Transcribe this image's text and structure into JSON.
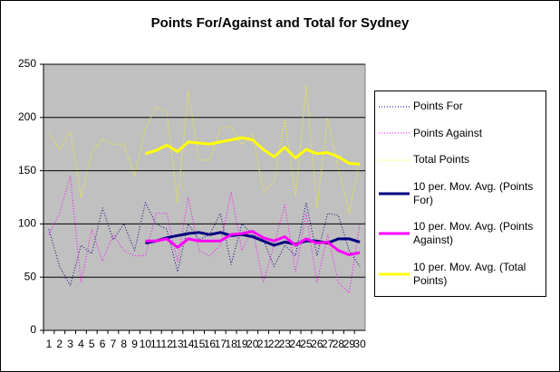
{
  "chart_data": {
    "type": "line",
    "title": "Points For/Against and Total for Sydney",
    "categories": [
      "1",
      "2",
      "3",
      "4",
      "5",
      "6",
      "7",
      "8",
      "9",
      "10",
      "11",
      "12",
      "13",
      "14",
      "15",
      "16",
      "17",
      "18",
      "19",
      "20",
      "21",
      "22",
      "23",
      "24",
      "25",
      "26",
      "27",
      "28",
      "29",
      "30"
    ],
    "ylim": [
      0,
      250
    ],
    "yticks": [
      0,
      50,
      100,
      150,
      200,
      250
    ],
    "grid": true,
    "plot_background": "#c0c0c0",
    "series": [
      {
        "name": "Points For",
        "color": "#000080",
        "style": "dotted",
        "values": [
          95,
          60,
          42,
          80,
          72,
          115,
          85,
          100,
          75,
          120,
          100,
          95,
          55,
          100,
          85,
          90,
          110,
          62,
          100,
          90,
          85,
          60,
          80,
          70,
          120,
          70,
          110,
          108,
          75,
          60
        ]
      },
      {
        "name": "Points Against",
        "color": "#ff00ff",
        "style": "dotted",
        "values": [
          90,
          110,
          145,
          45,
          95,
          65,
          90,
          75,
          70,
          70,
          110,
          110,
          65,
          125,
          75,
          70,
          80,
          130,
          75,
          95,
          45,
          80,
          118,
          55,
          110,
          45,
          90,
          45,
          35,
          100
        ]
      },
      {
        "name": "Total Points",
        "color": "#ffff00",
        "style": "dotted",
        "values": [
          185,
          170,
          187,
          125,
          167,
          180,
          175,
          175,
          145,
          190,
          210,
          205,
          120,
          225,
          160,
          160,
          190,
          192,
          175,
          185,
          130,
          140,
          198,
          125,
          230,
          115,
          200,
          153,
          110,
          160
        ]
      },
      {
        "name": "10 per. Mov. Avg. (Points For)",
        "color": "#000080",
        "style": "solid",
        "values": [
          null,
          null,
          null,
          null,
          null,
          null,
          null,
          null,
          null,
          82,
          84,
          87,
          89,
          91,
          92,
          90,
          92,
          89,
          90,
          88,
          84,
          80,
          83,
          81,
          84,
          84,
          82,
          86,
          86,
          83
        ]
      },
      {
        "name": "10 per. Mov. Avg. (Points Against)",
        "color": "#ff00ff",
        "style": "solid",
        "values": [
          null,
          null,
          null,
          null,
          null,
          null,
          null,
          null,
          null,
          84,
          84,
          86,
          78,
          86,
          84,
          84,
          84,
          90,
          91,
          93,
          87,
          84,
          88,
          80,
          86,
          82,
          83,
          75,
          71,
          73
        ]
      },
      {
        "name": "10 per. Mov. Avg. (Total Points)",
        "color": "#ffff00",
        "style": "solid",
        "values": [
          null,
          null,
          null,
          null,
          null,
          null,
          null,
          null,
          null,
          166,
          169,
          174,
          168,
          177,
          176,
          175,
          177,
          179,
          181,
          179,
          170,
          163,
          172,
          162,
          170,
          166,
          167,
          163,
          157,
          156
        ]
      }
    ]
  }
}
